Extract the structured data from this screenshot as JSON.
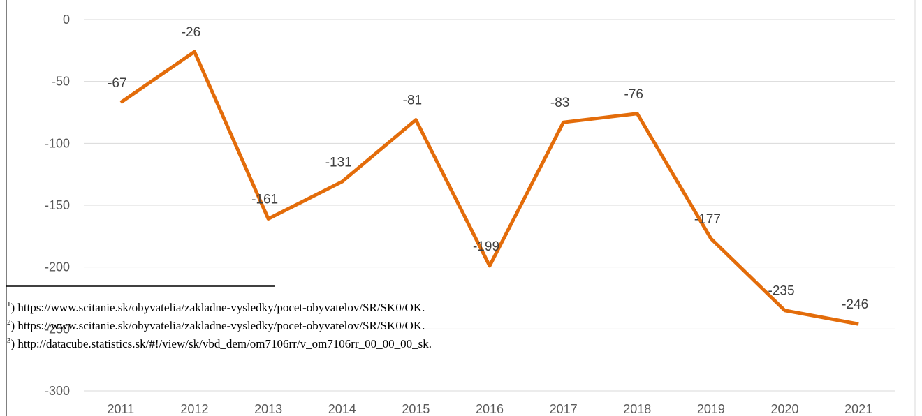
{
  "chart_data": {
    "type": "line",
    "categories": [
      "2011",
      "2012",
      "2013",
      "2014",
      "2015",
      "2016",
      "2017",
      "2018",
      "2019",
      "2020",
      "2021"
    ],
    "series": [
      {
        "color": "#e36c0a",
        "values": [
          -67,
          -26,
          -161,
          -131,
          -81,
          -199,
          -83,
          -76,
          -177,
          -235,
          -246
        ]
      }
    ],
    "ylim": [
      -300,
      0
    ],
    "yticks": [
      -300,
      -250,
      -200,
      -150,
      -100,
      -50,
      0
    ],
    "grid": true
  },
  "footnotes": [
    {
      "mark": "1",
      "text": ") https://www.scitanie.sk/obyvatelia/zakladne-vysledky/pocet-obyvatelov/SR/SK0/OK."
    },
    {
      "mark": "2",
      "text": ") https://www.scitanie.sk/obyvatelia/zakladne-vysledky/pocet-obyvatelov/SR/SK0/OK."
    },
    {
      "mark": "3",
      "text": ") http://datacube.statistics.sk/#!/view/sk/vbd_dem/om7106rr/v_om7106rr_00_00_00_sk."
    }
  ]
}
